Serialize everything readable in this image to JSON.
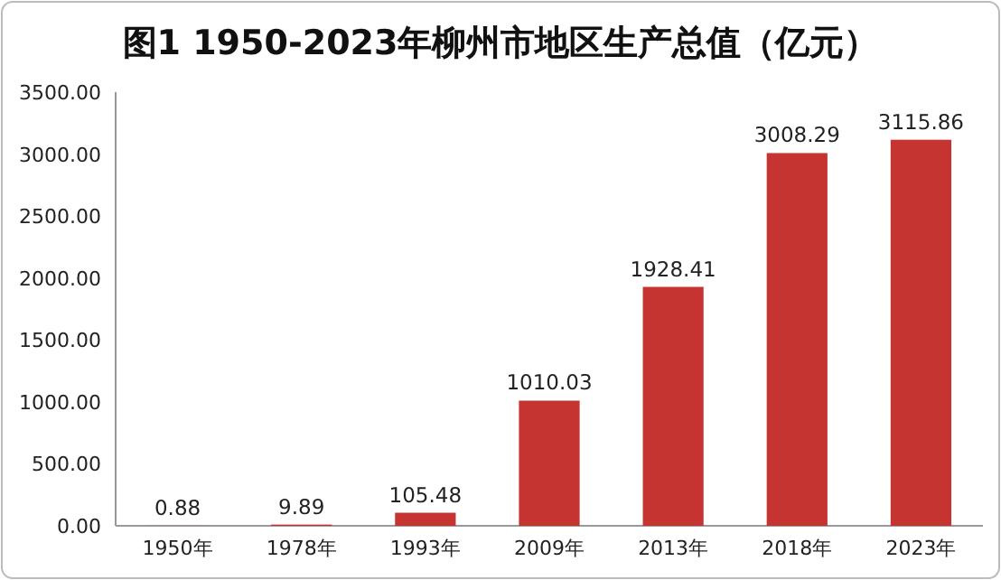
{
  "chart_data": {
    "type": "bar",
    "title": "图1 1950-2023年柳州市地区生产总值（亿元）",
    "categories": [
      "1950年",
      "1978年",
      "1993年",
      "2009年",
      "2013年",
      "2018年",
      "2023年"
    ],
    "values": [
      0.88,
      9.89,
      105.48,
      1010.03,
      1928.41,
      3008.29,
      3115.86
    ],
    "color": "#c63431",
    "ylim": [
      0,
      3500
    ],
    "yticks": [
      {
        "value": 0,
        "label": "0.00"
      },
      {
        "value": 500,
        "label": "500.00"
      },
      {
        "value": 1000,
        "label": "1000.00"
      },
      {
        "value": 1500,
        "label": "1500.00"
      },
      {
        "value": 2000,
        "label": "2000.00"
      },
      {
        "value": 2500,
        "label": "2500.00"
      },
      {
        "value": 3000,
        "label": "3000.00"
      },
      {
        "value": 3500,
        "label": "3500.00"
      }
    ],
    "data_labels": true
  }
}
